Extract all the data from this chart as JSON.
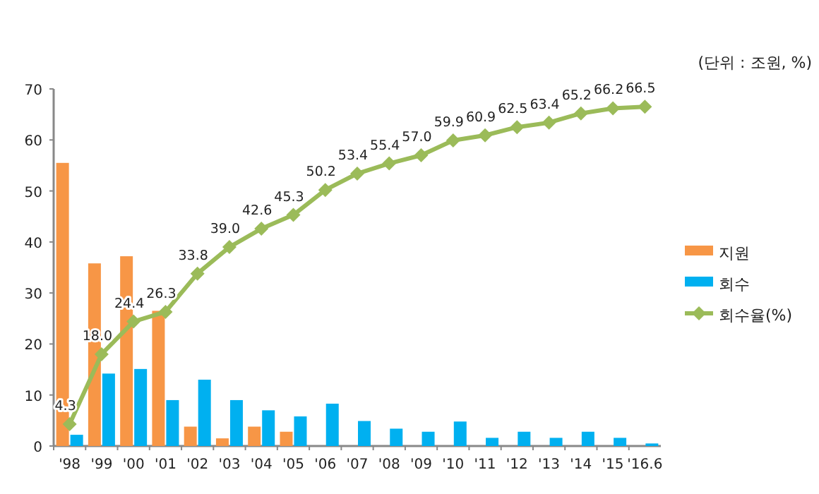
{
  "chart_data": {
    "type": "bar",
    "annotations": [
      "(단위 : 조원, %)"
    ],
    "categories": [
      "'98",
      "'99",
      "'00",
      "'01",
      "'02",
      "'03",
      "'04",
      "'05",
      "'06",
      "'07",
      "'08",
      "'09",
      "'10",
      "'11",
      "'12",
      "'13",
      "'14",
      "'15",
      "'16.6"
    ],
    "series": [
      {
        "name": "지원",
        "type": "bar",
        "color": "#f79646",
        "values": [
          55.5,
          35.8,
          37.2,
          26.5,
          3.8,
          1.5,
          3.8,
          2.8,
          null,
          null,
          null,
          null,
          null,
          null,
          null,
          null,
          null,
          null,
          null
        ]
      },
      {
        "name": "회수",
        "type": "bar",
        "color": "#00b0f0",
        "values": [
          2.2,
          14.2,
          15.1,
          9.0,
          13.0,
          9.0,
          7.0,
          5.8,
          8.3,
          4.9,
          3.4,
          2.8,
          4.8,
          1.6,
          2.8,
          1.6,
          2.8,
          1.6,
          0.5
        ]
      },
      {
        "name": "회수율(%)",
        "type": "line",
        "color": "#9bbb59",
        "marker": "diamond",
        "values": [
          4.3,
          18.0,
          24.4,
          26.3,
          33.8,
          39.0,
          42.6,
          45.3,
          50.2,
          53.4,
          55.4,
          57.0,
          59.9,
          60.9,
          62.5,
          63.4,
          65.2,
          66.2,
          66.5
        ],
        "value_labels": [
          "4.3",
          "18.0",
          "24.4",
          "26.3",
          "33.8",
          "39.0",
          "42.6",
          "45.3",
          "50.2",
          "53.4",
          "55.4",
          "57.0",
          "59.9",
          "60.9",
          "62.5",
          "63.4",
          "65.2",
          "66.2",
          "66.5"
        ]
      }
    ],
    "ylim": [
      0,
      70
    ],
    "yticks": [
      0,
      10,
      20,
      30,
      40,
      50,
      60,
      70
    ],
    "legend": "right"
  }
}
